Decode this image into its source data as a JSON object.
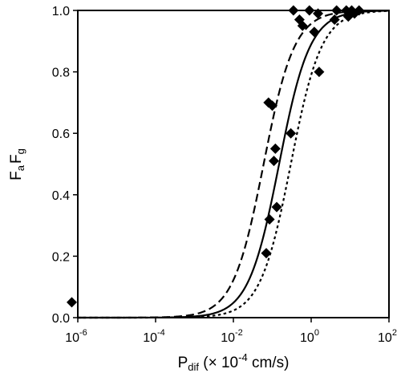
{
  "chart_data": {
    "type": "scatter",
    "title": "",
    "x_axis": {
      "scale": "log",
      "range": [
        1e-06,
        100
      ],
      "ticks": [
        {
          "value": 1e-06,
          "base": "10",
          "exp": "-6"
        },
        {
          "value": 0.0001,
          "base": "10",
          "exp": "-4"
        },
        {
          "value": 0.01,
          "base": "10",
          "exp": "-2"
        },
        {
          "value": 1,
          "base": "10",
          "exp": "0"
        },
        {
          "value": 100,
          "base": "10",
          "exp": "2"
        }
      ],
      "label": {
        "main": "P",
        "sub": "dif",
        "suffix": " (× 10",
        "exp": "-4",
        "end": " cm/s)"
      }
    },
    "y_axis": {
      "range": [
        0,
        1.0
      ],
      "ticks": [
        "0.0",
        "0.2",
        "0.4",
        "0.6",
        "0.8",
        "1.0"
      ],
      "label": {
        "p1": "F",
        "s1": "a",
        "p2": "F",
        "s2": "g"
      }
    },
    "grid": false,
    "legend": "none",
    "marker": "diamond",
    "colors": {
      "points": "#000000",
      "curves": "#000000"
    },
    "points": [
      {
        "x": 7e-07,
        "y": 0.05
      },
      {
        "x": 0.07,
        "y": 0.21
      },
      {
        "x": 0.08,
        "y": 0.7
      },
      {
        "x": 0.085,
        "y": 0.32
      },
      {
        "x": 0.1,
        "y": 0.69
      },
      {
        "x": 0.11,
        "y": 0.51
      },
      {
        "x": 0.12,
        "y": 0.55
      },
      {
        "x": 0.13,
        "y": 0.36
      },
      {
        "x": 0.3,
        "y": 0.6
      },
      {
        "x": 0.35,
        "y": 1.0
      },
      {
        "x": 0.5,
        "y": 0.97
      },
      {
        "x": 0.6,
        "y": 0.95
      },
      {
        "x": 0.9,
        "y": 1.0
      },
      {
        "x": 1.2,
        "y": 0.93
      },
      {
        "x": 1.5,
        "y": 0.99
      },
      {
        "x": 1.6,
        "y": 0.8
      },
      {
        "x": 4.5,
        "y": 1.0
      },
      {
        "x": 4.0,
        "y": 0.97
      },
      {
        "x": 8,
        "y": 1.0
      },
      {
        "x": 9,
        "y": 0.98
      },
      {
        "x": 11,
        "y": 1.0
      },
      {
        "x": 13,
        "y": 0.99
      },
      {
        "x": 17,
        "y": 1.0
      }
    ],
    "series": [
      {
        "style": "dashed",
        "x50": 0.06,
        "slope": 1.1
      },
      {
        "style": "solid",
        "x50": 0.15,
        "slope": 1.1
      },
      {
        "style": "dotted",
        "x50": 0.3,
        "slope": 1.1
      }
    ]
  }
}
